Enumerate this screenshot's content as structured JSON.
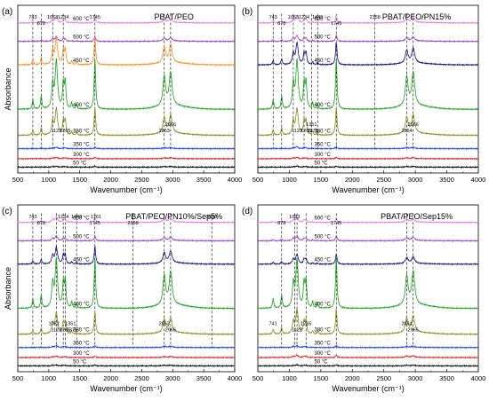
{
  "figure": {
    "xlabel": "Wavenumber (cm⁻¹)",
    "ylabel": "Absorbance"
  },
  "chart_data": [
    {
      "panel": "(a)",
      "title": "PBAT/PEO",
      "type": "line",
      "xlabel": "Wavenumber (cm⁻¹)",
      "ylabel": "Absorbance",
      "xlim": [
        500,
        4000
      ],
      "xticks": [
        500,
        1000,
        1500,
        2000,
        2500,
        3000,
        3500,
        4000
      ],
      "series": [
        {
          "name": "600 °C",
          "color": "#e87de8",
          "amp": 0.12
        },
        {
          "name": "500 °C",
          "color": "#a040c8",
          "amp": 0.1
        },
        {
          "name": "450 °C",
          "color": "#ff8c1a",
          "amp": 0.55
        },
        {
          "name": "400 °C",
          "color": "#19a319",
          "amp": 1.0
        },
        {
          "name": "380 °C",
          "color": "#8c8c1e",
          "amp": 0.55
        },
        {
          "name": "350 °C",
          "color": "#2040ff",
          "amp": 0.03
        },
        {
          "name": "300 °C",
          "color": "#e02020",
          "amp": 0.03
        },
        {
          "name": "50 °C",
          "color": "#000000",
          "amp": 0.02
        }
      ],
      "peaks": [
        743,
        878,
        1063,
        1122,
        1234,
        1265,
        1745,
        2863,
        2966
      ],
      "dashed_lines": [
        743,
        878,
        1063,
        1234,
        1745,
        2863,
        2966
      ]
    },
    {
      "panel": "(b)",
      "title": "PBAT/PEO/PN15%",
      "type": "line",
      "xlabel": "Wavenumber (cm⁻¹)",
      "ylabel": "",
      "xlim": [
        500,
        4000
      ],
      "xticks": [
        500,
        1000,
        1500,
        2000,
        2500,
        3000,
        3500,
        4000
      ],
      "series": [
        {
          "name": "600 °C",
          "color": "#e87de8",
          "amp": 0.15
        },
        {
          "name": "500 °C",
          "color": "#a040c8",
          "amp": 0.12
        },
        {
          "name": "450 °C",
          "color": "#101080",
          "amp": 0.45
        },
        {
          "name": "400 °C",
          "color": "#19a319",
          "amp": 1.0
        },
        {
          "name": "380 °C",
          "color": "#8c8c1e",
          "amp": 0.55
        },
        {
          "name": "350 °C",
          "color": "#2040ff",
          "amp": 0.04
        },
        {
          "name": "300 °C",
          "color": "#e02020",
          "amp": 0.03
        },
        {
          "name": "50 °C",
          "color": "#000000",
          "amp": 0.02
        }
      ],
      "peaks": [
        743,
        878,
        1063,
        1122,
        1234,
        1265,
        1351,
        1370,
        1449,
        1745,
        2358,
        2864,
        2966
      ],
      "dashed_lines": [
        743,
        878,
        1063,
        1234,
        1351,
        1449,
        1745,
        2358,
        2864,
        2966
      ]
    },
    {
      "panel": "(c)",
      "title": "PBAT/PEO/PN10%/Sep5%",
      "type": "line",
      "xlabel": "Wavenumber (cm⁻¹)",
      "ylabel": "Absorbance",
      "xlim": [
        500,
        4000
      ],
      "xticks": [
        500,
        1000,
        1500,
        2000,
        2500,
        3000,
        3500,
        4000
      ],
      "series": [
        {
          "name": "600 °C",
          "color": "#e87de8",
          "amp": 0.12
        },
        {
          "name": "500 °C",
          "color": "#a040c8",
          "amp": 0.1
        },
        {
          "name": "450 °C",
          "color": "#101080",
          "amp": 0.35
        },
        {
          "name": "400 °C",
          "color": "#19a319",
          "amp": 1.0
        },
        {
          "name": "380 °C",
          "color": "#8c8c1e",
          "amp": 0.45
        },
        {
          "name": "350 °C",
          "color": "#2040ff",
          "amp": 0.04
        },
        {
          "name": "300 °C",
          "color": "#e02020",
          "amp": 0.03
        },
        {
          "name": "50 °C",
          "color": "#000000",
          "amp": 0.02
        }
      ],
      "peaks": [
        743,
        878,
        1082,
        1122,
        1234,
        1265,
        1351,
        1375,
        1449,
        1745,
        1761,
        2358,
        2863,
        2966,
        3630
      ],
      "dashed_lines": [
        743,
        878,
        1122,
        1234,
        1265,
        1449,
        1745,
        2358,
        2863,
        2966,
        3630
      ]
    },
    {
      "panel": "(d)",
      "title": "PBAT/PEO/Sep15%",
      "type": "line",
      "xlabel": "Wavenumber (cm⁻¹)",
      "ylabel": "",
      "xlim": [
        500,
        4000
      ],
      "xticks": [
        500,
        1000,
        1500,
        2000,
        2500,
        3000,
        3500,
        4000
      ],
      "series": [
        {
          "name": "600 °C",
          "color": "#e87de8",
          "amp": 0.1
        },
        {
          "name": "500 °C",
          "color": "#a040c8",
          "amp": 0.1
        },
        {
          "name": "450 °C",
          "color": "#101080",
          "amp": 0.2
        },
        {
          "name": "400 °C",
          "color": "#19a319",
          "amp": 1.0
        },
        {
          "name": "380 °C",
          "color": "#8c8c1e",
          "amp": 0.5
        },
        {
          "name": "350 °C",
          "color": "#2040ff",
          "amp": 0.04
        },
        {
          "name": "300 °C",
          "color": "#e02020",
          "amp": 0.05
        },
        {
          "name": "50 °C",
          "color": "#000000",
          "amp": 0.02
        }
      ],
      "peaks": [
        741,
        878,
        1083,
        1122,
        1265,
        1745,
        2864,
        2965
      ],
      "dashed_lines": [
        878,
        1083,
        1122,
        1265,
        1745,
        2864,
        2965
      ]
    }
  ]
}
